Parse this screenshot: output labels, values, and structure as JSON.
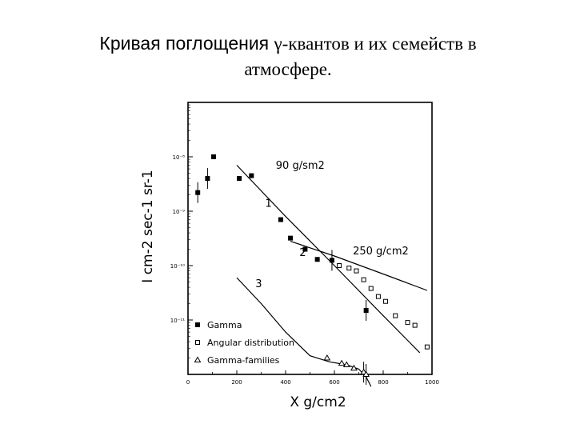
{
  "slide": {
    "title_line1_a": "Кривая поглощения ",
    "title_line1_b": "γ-квантов и их семейств в",
    "title_line2": "атмосфере."
  },
  "chart_data": {
    "type": "scatter",
    "xlabel": "X g/cm2",
    "ylabel": "I cm-2 sec-1 sr-1",
    "xlim": [
      0,
      1000
    ],
    "log_y": true,
    "ylim": [
      1e-12,
      1e-07
    ],
    "x_ticks": [
      "0",
      "200",
      "400",
      "600",
      "800",
      "1000"
    ],
    "x_tick_values": [
      0,
      200,
      400,
      600,
      800,
      1000
    ],
    "y_ticks": [
      "10⁻⁸",
      "10⁻⁹",
      "10⁻¹⁰",
      "10⁻¹¹"
    ],
    "y_tick_values": [
      1e-08,
      1e-09,
      1e-10,
      1e-11
    ],
    "series": [
      {
        "name": "Gamma",
        "marker": "filled-square",
        "x": [
          40,
          80,
          105,
          210,
          260,
          380,
          420,
          480,
          530,
          590,
          730
        ],
        "y": [
          2.2e-09,
          4e-09,
          1e-08,
          4e-09,
          4.5e-09,
          7e-10,
          3.2e-10,
          2e-10,
          1.3e-10,
          1.25e-10,
          1.5e-11
        ],
        "error_bars": [
          true,
          true,
          false,
          false,
          false,
          false,
          false,
          false,
          false,
          true,
          true
        ]
      },
      {
        "name": "Angular distribution",
        "marker": "open-square",
        "x": [
          620,
          660,
          690,
          720,
          750,
          780,
          810,
          850,
          900,
          930,
          980
        ],
        "y": [
          1e-10,
          9e-11,
          8e-11,
          5.5e-11,
          3.8e-11,
          2.7e-11,
          2.2e-11,
          1.2e-11,
          9e-12,
          8e-12,
          3.2e-12
        ],
        "error_bars": [
          false,
          false,
          false,
          false,
          false,
          false,
          false,
          false,
          false,
          false,
          false
        ]
      },
      {
        "name": "Gamma-families",
        "marker": "open-triangle",
        "x": [
          570,
          630,
          650,
          680,
          720,
          730
        ],
        "y": [
          2e-12,
          1.6e-12,
          1.5e-12,
          1.3e-12,
          1.1e-12,
          1e-12
        ],
        "error_bars": [
          false,
          false,
          false,
          false,
          true,
          true
        ]
      }
    ],
    "curves": [
      {
        "id": "1",
        "x": [
          200,
          400,
          600,
          800,
          950
        ],
        "y": [
          7e-09,
          8e-10,
          1e-10,
          1.2e-11,
          2.5e-12
        ]
      },
      {
        "id": "2",
        "x": [
          420,
          600,
          800,
          980
        ],
        "y": [
          2.8e-10,
          1.5e-10,
          7e-11,
          3.5e-11
        ]
      },
      {
        "id": "3",
        "x": [
          200,
          300,
          400,
          500,
          580,
          650,
          700,
          730,
          750
        ],
        "y": [
          6e-11,
          2e-11,
          6e-12,
          2.2e-12,
          1.7e-12,
          1.5e-12,
          1.25e-12,
          9e-13,
          6e-13
        ]
      }
    ],
    "annotations": [
      {
        "text": "90 g/sm2",
        "x": 460,
        "y": 6e-09
      },
      {
        "text": "250 g/cm2",
        "x": 790,
        "y": 1.6e-10
      },
      {
        "text": "1",
        "x": 330,
        "y": 1.2e-09
      },
      {
        "text": "2",
        "x": 470,
        "y": 1.5e-10
      },
      {
        "text": "3",
        "x": 290,
        "y": 4e-11
      }
    ],
    "legend_position": "bottom-left",
    "grid": false
  }
}
